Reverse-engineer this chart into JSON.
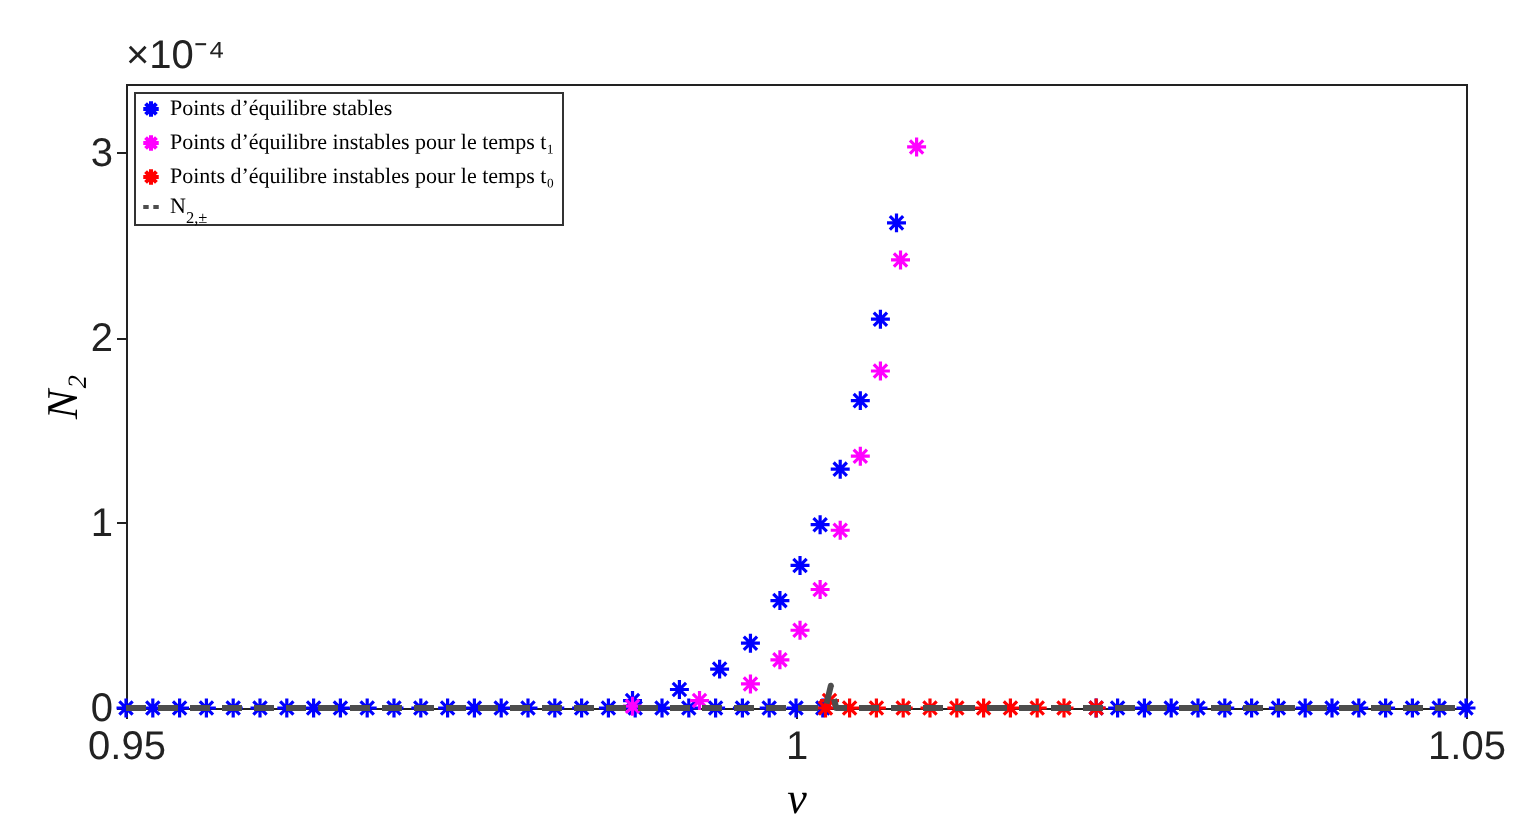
{
  "chart_data": {
    "type": "scatter",
    "xlabel": "ν",
    "ylabel": "N₂",
    "annotations": [
      "×10⁻⁴"
    ],
    "xlim": [
      0.95,
      1.05
    ],
    "xticks": [
      0.95,
      1,
      1.05
    ],
    "ylim": [
      0,
      3.37
    ],
    "yticks": [
      0,
      1,
      2,
      3
    ],
    "grid": false,
    "legend": "top left",
    "marker": "cross",
    "series": [
      {
        "name": "Points d’équilibre stables",
        "type": "scatter",
        "color": "#0000ff",
        "x": [
          0.95,
          0.952,
          0.954,
          0.956,
          0.958,
          0.96,
          0.962,
          0.964,
          0.966,
          0.968,
          0.97,
          0.972,
          0.974,
          0.976,
          0.978,
          0.98,
          0.982,
          0.984,
          0.986,
          0.988,
          0.99,
          0.992,
          0.994,
          0.996,
          0.998,
          1,
          1.002,
          1.0224,
          1.024,
          1.026,
          1.028,
          1.03,
          1.032,
          1.034,
          1.036,
          1.038,
          1.04,
          1.042,
          1.044,
          1.046,
          1.048,
          1.05,
          0.9878,
          0.9913,
          0.9943,
          0.9966,
          0.9988,
          1.0003,
          1.0018,
          1.0033,
          1.0048,
          1.0063,
          1.0075
        ],
        "values": [
          0,
          0,
          0,
          0,
          0,
          0,
          0,
          0,
          0,
          0,
          0,
          0,
          0,
          0,
          0,
          0,
          0,
          0,
          0,
          0,
          0,
          0,
          0,
          0,
          0,
          0,
          0,
          0,
          0,
          0,
          0,
          0,
          0,
          0,
          0,
          0,
          0,
          0,
          0,
          0,
          0,
          0,
          0.04,
          0.1,
          0.21,
          0.35,
          0.58,
          0.77,
          0.99,
          1.29,
          1.66,
          2.1,
          2.62
        ]
      },
      {
        "name": "Points d’équilibre instables pour le temps t₁",
        "type": "scatter",
        "color": "#ff00ff",
        "x": [
          0.9878,
          0.9928,
          0.9966,
          0.9988,
          1.0003,
          1.0018,
          1.0033,
          1.0048,
          1.0063,
          1.0078,
          1.009
        ],
        "values": [
          0.01,
          0.04,
          0.13,
          0.26,
          0.42,
          0.64,
          0.96,
          1.36,
          1.82,
          2.42,
          3.03
        ]
      },
      {
        "name": "Points d’équilibre instables pour le temps t₀",
        "type": "scatter",
        "color": "#ff0000",
        "x": [
          1.0022,
          1.0025,
          1.004,
          1.006,
          1.008,
          1.01,
          1.012,
          1.014,
          1.016,
          1.018,
          1.02,
          1.0224
        ],
        "values": [
          0,
          0.04,
          0,
          0,
          0,
          0,
          0,
          0,
          0,
          0,
          0,
          0
        ]
      },
      {
        "name": "N$_{2,±}$",
        "type": "line",
        "color": "#4d4d4d",
        "line_style": "dashed",
        "marker": "none",
        "x": [
          0.95,
          1.0022,
          1.0026,
          1.003,
          1.05
        ],
        "values": [
          0,
          0,
          0.12,
          0,
          0
        ]
      }
    ]
  }
}
